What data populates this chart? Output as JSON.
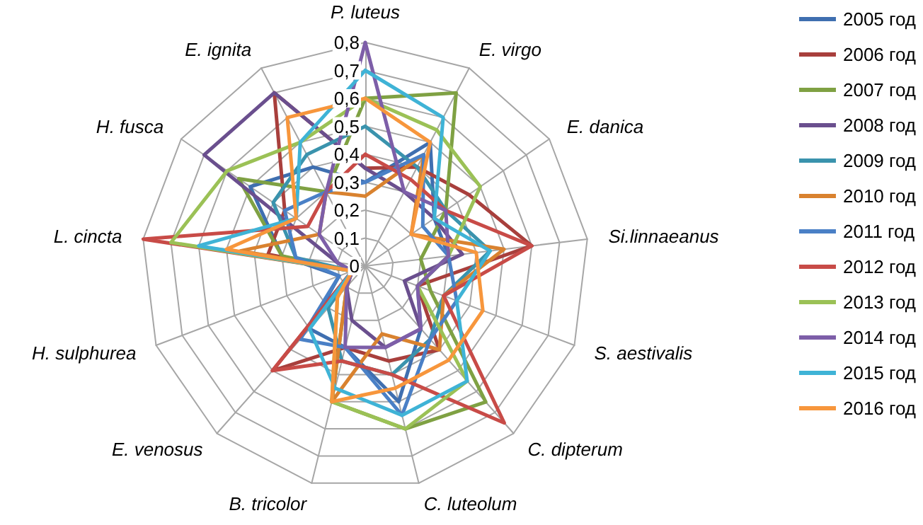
{
  "chart_data": {
    "type": "radar",
    "categories": [
      "P. luteus",
      "E. virgo",
      "E. danica",
      "Si.linnaeanus",
      "S. aestivalis",
      "C. dipterum",
      "C. luteolum",
      "B. tricolor",
      "E. venosus",
      "H. sulphurea",
      "L. cincta",
      "H. fusca",
      "E. ignita"
    ],
    "ylim": [
      0,
      0.8
    ],
    "yticks": [
      {
        "value": 0,
        "label": "0"
      },
      {
        "value": 0.1,
        "label": "0,1"
      },
      {
        "value": 0.2,
        "label": "0,2"
      },
      {
        "value": 0.3,
        "label": "0,3"
      },
      {
        "value": 0.4,
        "label": "0,4"
      },
      {
        "value": 0.5,
        "label": "0,5"
      },
      {
        "value": 0.6,
        "label": "0,6"
      },
      {
        "value": 0.7,
        "label": "0,7"
      },
      {
        "value": 0.8,
        "label": "0,8"
      }
    ],
    "grid": true,
    "legend": "right",
    "marker": "none",
    "line_style": "solid",
    "series": [
      {
        "name": "2005 год",
        "color": "#3f6fb0",
        "values": [
          0.3,
          0.5,
          0.3,
          0.3,
          0.2,
          0.3,
          0.5,
          0.3,
          0.3,
          0.1,
          0.3,
          0.5,
          0.4
        ]
      },
      {
        "name": "2006 год",
        "color": "#a83f3c",
        "values": [
          0.35,
          0.4,
          0.45,
          0.6,
          0.2,
          0.4,
          0.35,
          0.3,
          0.5,
          0.05,
          0.35,
          0.35,
          0.7
        ]
      },
      {
        "name": "2007 год",
        "color": "#7fa143",
        "values": [
          0.6,
          0.7,
          0.35,
          0.2,
          0.25,
          0.65,
          0.6,
          0.5,
          0.1,
          0.05,
          0.3,
          0.55,
          0.3
        ]
      },
      {
        "name": "2008 год",
        "color": "#6a4f8e",
        "values": [
          0.35,
          0.3,
          0.3,
          0.35,
          0.15,
          0.3,
          0.3,
          0.2,
          0.1,
          0.05,
          0.1,
          0.7,
          0.7
        ]
      },
      {
        "name": "2009 год",
        "color": "#3a93ad",
        "values": [
          0.5,
          0.4,
          0.35,
          0.45,
          0.3,
          0.35,
          0.4,
          0.35,
          0.2,
          0.05,
          0.25,
          0.4,
          0.45
        ]
      },
      {
        "name": "2010 год",
        "color": "#d9822f",
        "values": [
          0.25,
          0.45,
          0.2,
          0.5,
          0.3,
          0.4,
          0.25,
          0.5,
          0.1,
          0.05,
          0.45,
          0.2,
          0.3
        ]
      },
      {
        "name": "2011 год",
        "color": "#4a80c6",
        "values": [
          0.3,
          0.45,
          0.25,
          0.3,
          0.35,
          0.35,
          0.55,
          0.3,
          0.35,
          0.1,
          0.25,
          0.35,
          0.3
        ]
      },
      {
        "name": "2012 год",
        "color": "#c84b47",
        "values": [
          0.4,
          0.35,
          0.35,
          0.6,
          0.3,
          0.75,
          0.4,
          0.35,
          0.5,
          0.05,
          0.8,
          0.25,
          0.3
        ]
      },
      {
        "name": "2013 год",
        "color": "#9bc156",
        "values": [
          0.6,
          0.55,
          0.5,
          0.3,
          0.2,
          0.55,
          0.6,
          0.5,
          0.15,
          0.05,
          0.7,
          0.6,
          0.5
        ]
      },
      {
        "name": "2014 год",
        "color": "#7d5ea8",
        "values": [
          0.8,
          0.3,
          0.35,
          0.3,
          0.2,
          0.3,
          0.3,
          0.3,
          0.1,
          0.05,
          0.1,
          0.2,
          0.3
        ]
      },
      {
        "name": "2015 год",
        "color": "#3fb3d6",
        "values": [
          0.7,
          0.6,
          0.3,
          0.45,
          0.35,
          0.55,
          0.55,
          0.45,
          0.3,
          0.05,
          0.6,
          0.3,
          0.5
        ]
      },
      {
        "name": "2016 год",
        "color": "#f7963c",
        "values": [
          0.6,
          0.5,
          0.2,
          0.4,
          0.45,
          0.45,
          0.45,
          0.5,
          0.15,
          0.05,
          0.5,
          0.3,
          0.6
        ]
      }
    ]
  }
}
